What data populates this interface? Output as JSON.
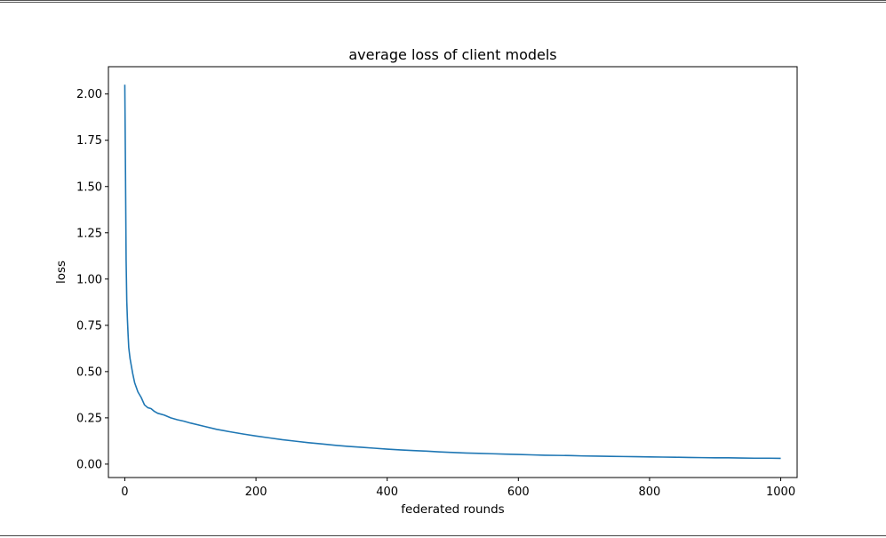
{
  "chart_data": {
    "type": "line",
    "title": "average loss of client models",
    "xlabel": "federated rounds",
    "ylabel": "loss",
    "xlim": [
      -25,
      1025
    ],
    "ylim": [
      -0.0725,
      2.1475
    ],
    "xticks": [
      0,
      200,
      400,
      600,
      800,
      1000
    ],
    "xtick_labels": [
      "0",
      "200",
      "400",
      "600",
      "800",
      "1000"
    ],
    "yticks": [
      0.0,
      0.25,
      0.5,
      0.75,
      1.0,
      1.25,
      1.5,
      1.75,
      2.0
    ],
    "ytick_labels": [
      "0.00",
      "0.25",
      "0.50",
      "0.75",
      "1.00",
      "1.25",
      "1.50",
      "1.75",
      "2.00"
    ],
    "grid": false,
    "series": [
      {
        "color": "#1f77b4",
        "x": [
          0,
          1,
          2,
          3,
          4,
          5,
          6,
          8,
          10,
          12,
          15,
          18,
          20,
          25,
          30,
          35,
          40,
          45,
          50,
          60,
          70,
          80,
          90,
          100,
          120,
          140,
          160,
          180,
          200,
          220,
          240,
          260,
          280,
          300,
          320,
          340,
          360,
          380,
          400,
          420,
          440,
          460,
          480,
          500,
          520,
          540,
          560,
          580,
          600,
          620,
          640,
          660,
          680,
          700,
          720,
          740,
          760,
          780,
          800,
          820,
          840,
          860,
          880,
          900,
          920,
          940,
          960,
          980,
          1000
        ],
        "y": [
          2.05,
          1.6,
          1.1,
          0.88,
          0.78,
          0.7,
          0.63,
          0.57,
          0.53,
          0.49,
          0.44,
          0.41,
          0.39,
          0.36,
          0.32,
          0.305,
          0.3,
          0.285,
          0.275,
          0.265,
          0.25,
          0.24,
          0.232,
          0.222,
          0.205,
          0.188,
          0.175,
          0.163,
          0.152,
          0.142,
          0.132,
          0.124,
          0.116,
          0.109,
          0.102,
          0.096,
          0.091,
          0.086,
          0.081,
          0.077,
          0.073,
          0.07,
          0.066,
          0.063,
          0.06,
          0.058,
          0.056,
          0.054,
          0.052,
          0.05,
          0.048,
          0.047,
          0.046,
          0.044,
          0.043,
          0.042,
          0.041,
          0.04,
          0.039,
          0.038,
          0.037,
          0.036,
          0.035,
          0.034,
          0.034,
          0.033,
          0.032,
          0.032,
          0.031
        ]
      }
    ]
  }
}
